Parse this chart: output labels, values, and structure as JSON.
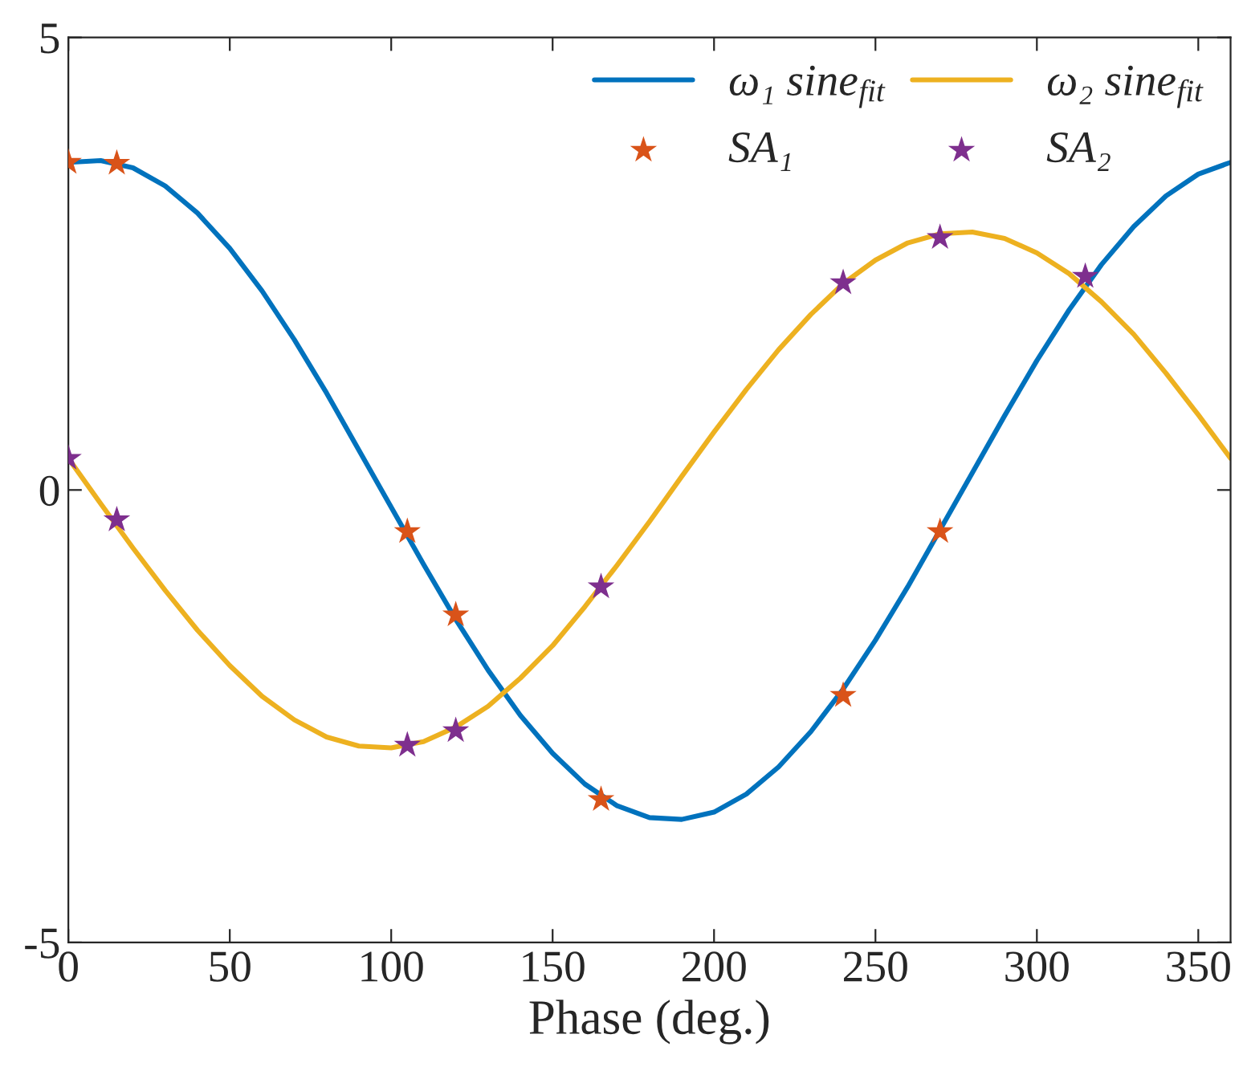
{
  "chart_data": {
    "type": "line",
    "xlabel": "Phase (deg.)",
    "xlim": [
      0,
      360
    ],
    "ylim": [
      -5,
      5
    ],
    "xticks": [
      0,
      50,
      100,
      150,
      200,
      250,
      300,
      350
    ],
    "yticks": [
      {
        "value": -5,
        "label": "-5"
      },
      0,
      5
    ],
    "grid": false,
    "legend": "top right",
    "series": [
      {
        "name": "ω₁ sine$_{fit}$",
        "color": "#0072bd",
        "marker": "none",
        "line_style": "solid",
        "x": [
          0,
          10,
          20,
          30,
          40,
          50,
          60,
          70,
          80,
          90,
          100,
          110,
          120,
          130,
          140,
          150,
          160,
          170,
          180,
          190,
          200,
          210,
          220,
          230,
          240,
          250,
          260,
          270,
          280,
          290,
          300,
          310,
          320,
          330,
          340,
          350,
          360
        ],
        "values": [
          3.62,
          3.64,
          3.56,
          3.36,
          3.06,
          2.67,
          2.2,
          1.66,
          1.07,
          0.44,
          -0.19,
          -0.82,
          -1.43,
          -1.99,
          -2.49,
          -2.91,
          -3.25,
          -3.49,
          -3.62,
          -3.64,
          -3.56,
          -3.36,
          -3.06,
          -2.67,
          -2.2,
          -1.66,
          -1.07,
          -0.44,
          0.19,
          0.82,
          1.43,
          1.99,
          2.49,
          2.91,
          3.25,
          3.49,
          3.62
        ]
      },
      {
        "name": "ω₂ sine$_{fit}$",
        "color": "#edb120",
        "marker": "none",
        "line_style": "solid",
        "x": [
          0,
          10,
          20,
          30,
          40,
          50,
          60,
          70,
          80,
          90,
          100,
          110,
          120,
          130,
          140,
          150,
          160,
          170,
          180,
          190,
          200,
          210,
          220,
          230,
          240,
          250,
          260,
          270,
          280,
          290,
          300,
          310,
          320,
          330,
          340,
          350,
          360
        ],
        "values": [
          0.35,
          -0.15,
          -0.64,
          -1.11,
          -1.55,
          -1.94,
          -2.28,
          -2.54,
          -2.73,
          -2.83,
          -2.85,
          -2.78,
          -2.62,
          -2.39,
          -2.08,
          -1.72,
          -1.29,
          -0.83,
          -0.35,
          0.15,
          0.64,
          1.11,
          1.55,
          1.94,
          2.28,
          2.54,
          2.73,
          2.83,
          2.85,
          2.78,
          2.62,
          2.39,
          2.08,
          1.72,
          1.29,
          0.83,
          0.35
        ]
      },
      {
        "name": "SA₁",
        "type": "scatter",
        "color": "#d95319",
        "marker": "star",
        "x": [
          0,
          15,
          105,
          120,
          165,
          240,
          270
        ],
        "values": [
          3.62,
          3.61,
          -0.46,
          -1.38,
          -3.42,
          -2.27,
          -0.46
        ]
      },
      {
        "name": "SA₂",
        "type": "scatter",
        "color": "#7e2f8e",
        "marker": "star",
        "x": [
          0,
          15,
          105,
          120,
          165,
          240,
          270,
          315
        ],
        "values": [
          0.35,
          -0.33,
          -2.82,
          -2.66,
          -1.07,
          2.29,
          2.79,
          2.36
        ]
      }
    ]
  }
}
